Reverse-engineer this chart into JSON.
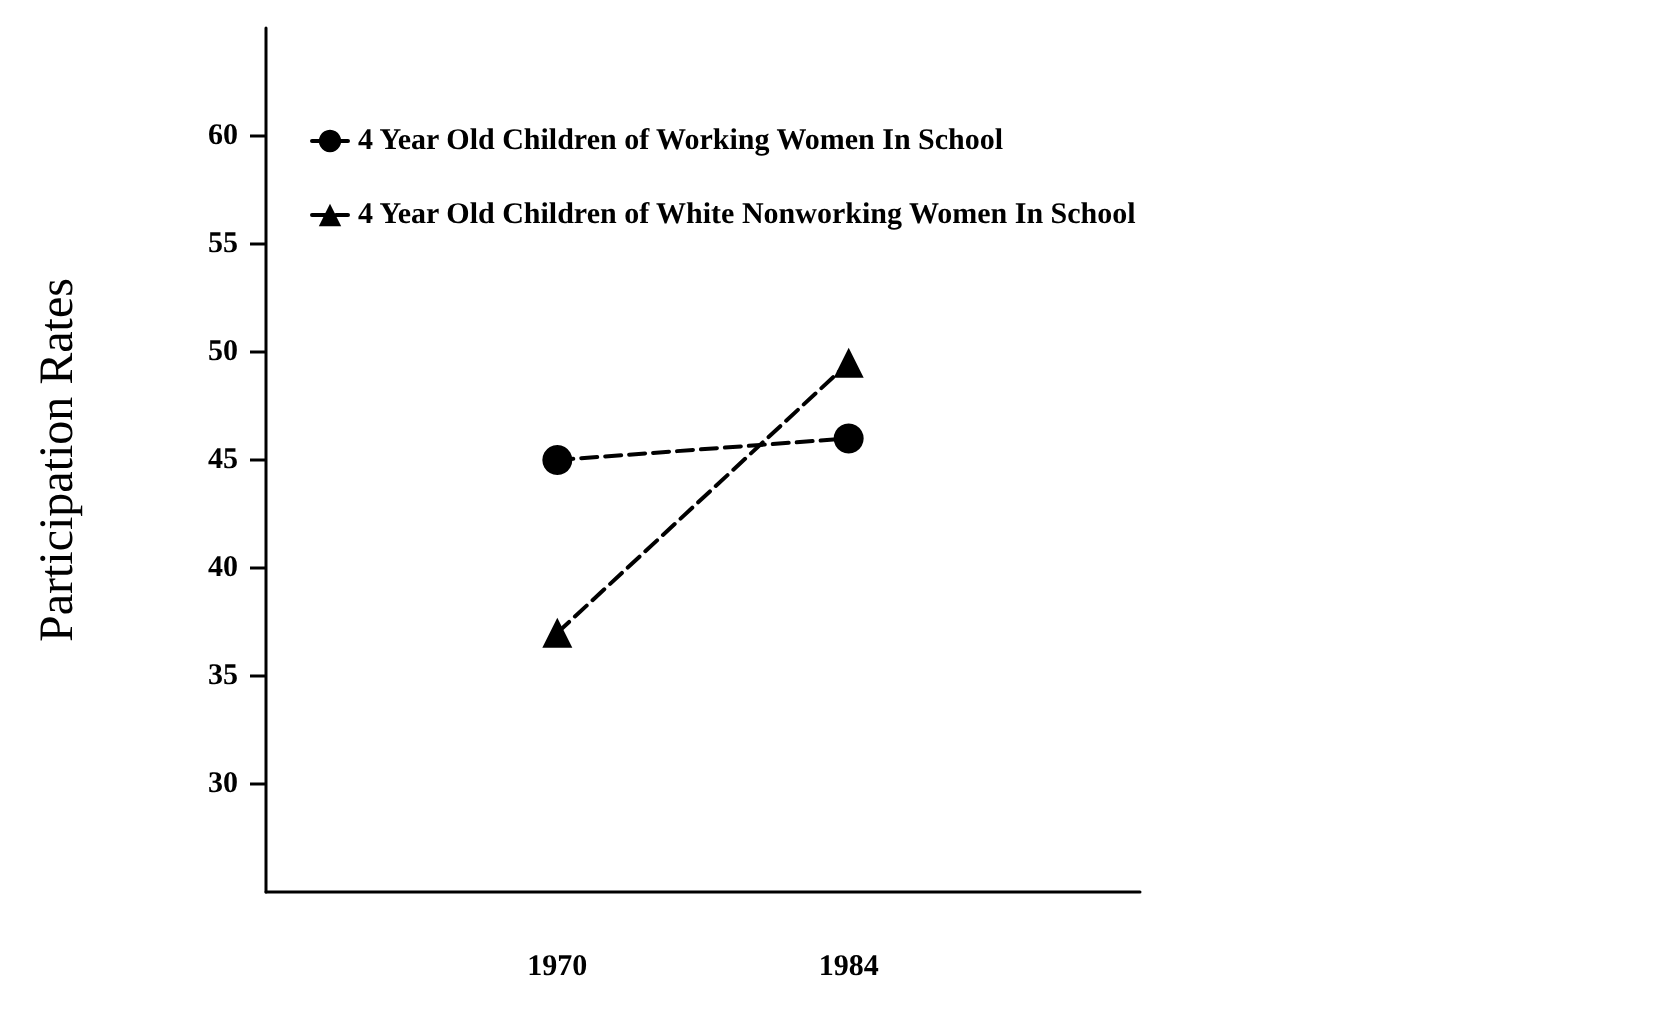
{
  "chart_data": {
    "type": "line",
    "ylabel": "Participation Rates",
    "x": [
      1970,
      1984
    ],
    "xlim": [
      1956,
      1998
    ],
    "xticks": [
      1970,
      1984
    ],
    "ylim": [
      25,
      65
    ],
    "yticks": [
      30,
      35,
      40,
      45,
      50,
      55,
      60
    ],
    "grid": false,
    "legend": "top",
    "line_style": "dashed",
    "series": [
      {
        "name": "4 Year Old Children of Working Women In School",
        "color": "#000000",
        "marker": "circle",
        "values": [
          45,
          46
        ]
      },
      {
        "name": "4 Year Old Children of White Nonworking Women In School",
        "color": "#000000",
        "marker": "triangle",
        "values": [
          37,
          49.5
        ]
      }
    ]
  }
}
